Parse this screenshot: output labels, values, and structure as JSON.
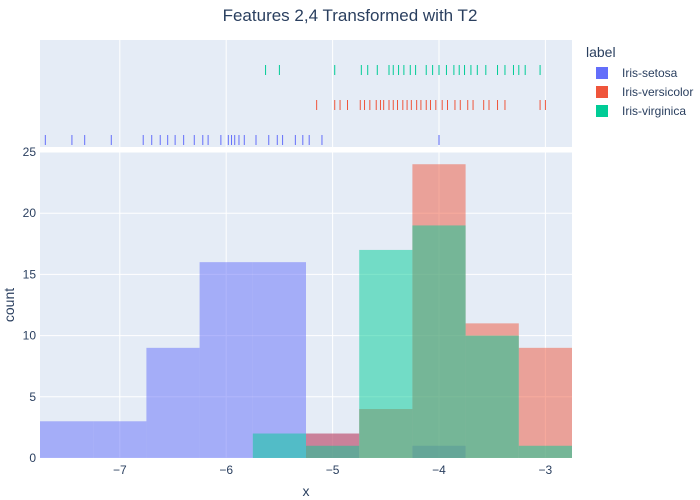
{
  "chart_data": {
    "type": "histogram",
    "title": "Features 2,4 Transformed with T2",
    "xlabel": "x",
    "ylabel": "count",
    "xlim": [
      -7.75,
      -2.75
    ],
    "ylim": [
      0,
      25
    ],
    "xticks": [
      -7,
      -6,
      -5,
      -4,
      -3
    ],
    "xtick_labels": [
      "−7",
      "−6",
      "−5",
      "−4",
      "−3"
    ],
    "yticks": [
      0,
      5,
      10,
      15,
      20,
      25
    ],
    "ytick_labels": [
      "0",
      "5",
      "10",
      "15",
      "20",
      "25"
    ],
    "bin_width": 0.5,
    "bin_edges": [
      -7.75,
      -7.25,
      -6.75,
      -6.25,
      -5.75,
      -5.25,
      -4.75,
      -4.25,
      -3.75,
      -3.25,
      -2.75
    ],
    "barmode": "overlay",
    "opacity": 0.5,
    "legend_title": "label",
    "legend_position": "top-right",
    "grid": true,
    "marginal": "rug",
    "series": [
      {
        "name": "Iris-setosa",
        "color": "#636efa",
        "counts": [
          3,
          3,
          9,
          16,
          16,
          2,
          0,
          1,
          0,
          0
        ],
        "rug": [
          -7.7,
          -7.45,
          -7.33,
          -7.08,
          -6.78,
          -6.7,
          -6.62,
          -6.55,
          -6.48,
          -6.4,
          -6.3,
          -6.22,
          -6.17,
          -6.05,
          -5.98,
          -5.95,
          -5.92,
          -5.88,
          -5.83,
          -5.72,
          -5.6,
          -5.52,
          -5.47,
          -5.35,
          -5.28,
          -5.22,
          -5.1,
          -4.0
        ]
      },
      {
        "name": "Iris-versicolor",
        "color": "#ef553b",
        "counts": [
          0,
          0,
          0,
          0,
          0,
          2,
          4,
          24,
          11,
          9
        ],
        "rug": [
          -5.15,
          -4.98,
          -4.93,
          -4.86,
          -4.74,
          -4.7,
          -4.65,
          -4.59,
          -4.55,
          -4.52,
          -4.47,
          -4.43,
          -4.39,
          -4.34,
          -4.3,
          -4.26,
          -4.21,
          -4.17,
          -4.12,
          -4.08,
          -4.03,
          -3.97,
          -3.92,
          -3.85,
          -3.8,
          -3.73,
          -3.68,
          -3.58,
          -3.53,
          -3.45,
          -3.38,
          -3.05,
          -3.0
        ]
      },
      {
        "name": "Iris-virginica",
        "color": "#00cc96",
        "counts": [
          0,
          0,
          0,
          0,
          2,
          1,
          17,
          19,
          10,
          1
        ],
        "rug": [
          -5.63,
          -5.5,
          -4.98,
          -4.73,
          -4.67,
          -4.58,
          -4.47,
          -4.43,
          -4.38,
          -4.33,
          -4.27,
          -4.22,
          -4.12,
          -4.06,
          -4.0,
          -3.93,
          -3.86,
          -3.81,
          -3.76,
          -3.7,
          -3.64,
          -3.56,
          -3.45,
          -3.38,
          -3.3,
          -3.25,
          -3.19,
          -3.05
        ]
      }
    ]
  }
}
